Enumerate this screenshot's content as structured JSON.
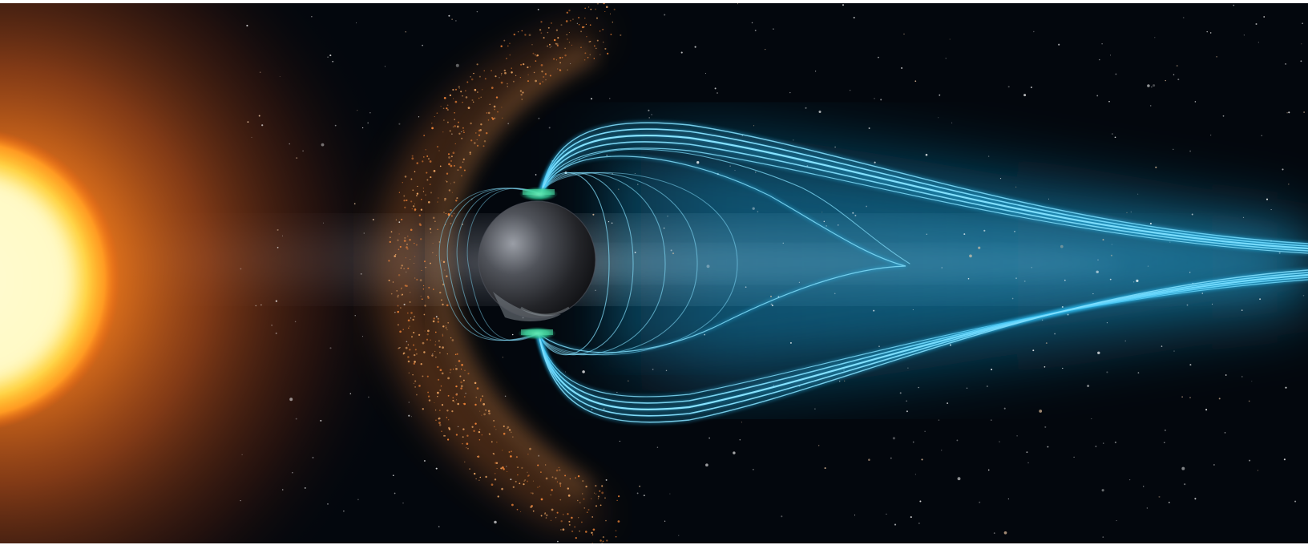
{
  "scene": {
    "subject": "sun-wind-magnetosphere-illustration",
    "elements": [
      {
        "name": "sun",
        "color": "#fff07a"
      },
      {
        "name": "solar-wind-glow",
        "color": "#c4521a"
      },
      {
        "name": "bow-shock",
        "color": "#ff9a3c"
      },
      {
        "name": "milky-way-band",
        "color": "#8a8f9a"
      },
      {
        "name": "earth",
        "color": "#2b2b2e"
      },
      {
        "name": "aurora-north",
        "color": "#37d09b"
      },
      {
        "name": "aurora-south",
        "color": "#37d09b"
      },
      {
        "name": "magnetic-field-lines",
        "color": "#6fd8ff"
      },
      {
        "name": "magnetotail-glow",
        "color": "#1fa6dc"
      },
      {
        "name": "starfield",
        "color": "#ffffff"
      }
    ],
    "colors": {
      "space": "#02060c",
      "sun_core": "#fffbd0",
      "sun_mid": "#ffd13a",
      "sun_outer": "#f06a10",
      "field_line": "#7fe0ff",
      "tail_glow": "#1b9fd6"
    }
  }
}
